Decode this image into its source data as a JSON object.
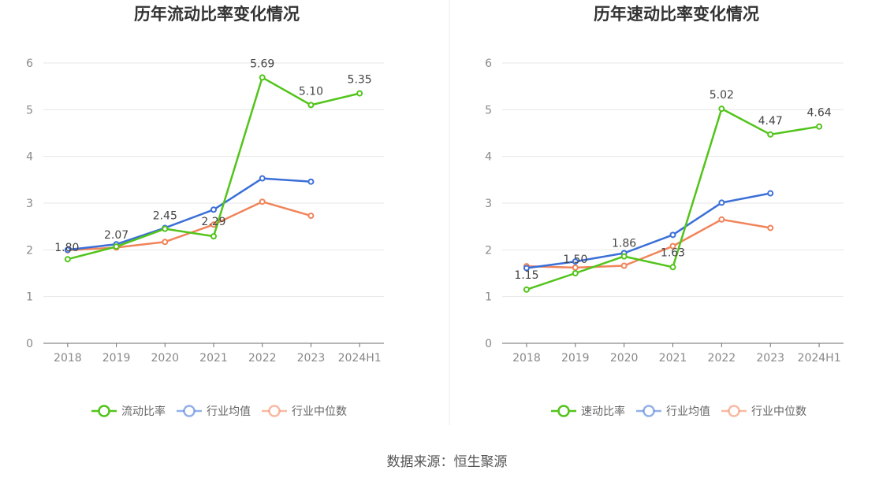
{
  "source": "数据来源：恒生聚源",
  "chart_data": [
    {
      "type": "line",
      "title": "历年流动比率变化情况",
      "categories": [
        "2018",
        "2019",
        "2020",
        "2021",
        "2022",
        "2023",
        "2024H1"
      ],
      "ylim": [
        0,
        6
      ],
      "yticks": [
        "0",
        "1",
        "2",
        "3",
        "4",
        "5",
        "6"
      ],
      "grid": true,
      "legend_position": "bottom",
      "series": [
        {
          "name": "流动比率",
          "color": "#52c41a",
          "values": [
            1.8,
            2.07,
            2.45,
            2.29,
            5.69,
            5.1,
            5.35
          ],
          "labels": [
            "1.80",
            "2.07",
            "2.45",
            "2.29",
            "5.69",
            "5.10",
            "5.35"
          ]
        },
        {
          "name": "行业均值",
          "color": "#3b6fd8",
          "values": [
            2.0,
            2.12,
            2.47,
            2.86,
            3.53,
            3.46,
            null
          ]
        },
        {
          "name": "行业中位数",
          "color": "#f0845a",
          "values": [
            1.99,
            2.05,
            2.17,
            2.54,
            3.03,
            2.73,
            null
          ]
        }
      ]
    },
    {
      "type": "line",
      "title": "历年速动比率变化情况",
      "categories": [
        "2018",
        "2019",
        "2020",
        "2021",
        "2022",
        "2023",
        "2024H1"
      ],
      "ylim": [
        0,
        6
      ],
      "yticks": [
        "0",
        "1",
        "2",
        "3",
        "4",
        "5",
        "6"
      ],
      "grid": true,
      "legend_position": "bottom",
      "series": [
        {
          "name": "速动比率",
          "color": "#52c41a",
          "values": [
            1.15,
            1.5,
            1.86,
            1.63,
            5.02,
            4.47,
            4.64
          ],
          "labels": [
            "1.15",
            "1.50",
            "1.86",
            "1.63",
            "5.02",
            "4.47",
            "4.64"
          ]
        },
        {
          "name": "行业均值",
          "color": "#3b6fd8",
          "values": [
            1.61,
            1.75,
            1.93,
            2.32,
            3.01,
            3.21,
            null
          ]
        },
        {
          "name": "行业中位数",
          "color": "#f0845a",
          "values": [
            1.65,
            1.62,
            1.66,
            2.08,
            2.65,
            2.47,
            null
          ]
        }
      ]
    }
  ]
}
